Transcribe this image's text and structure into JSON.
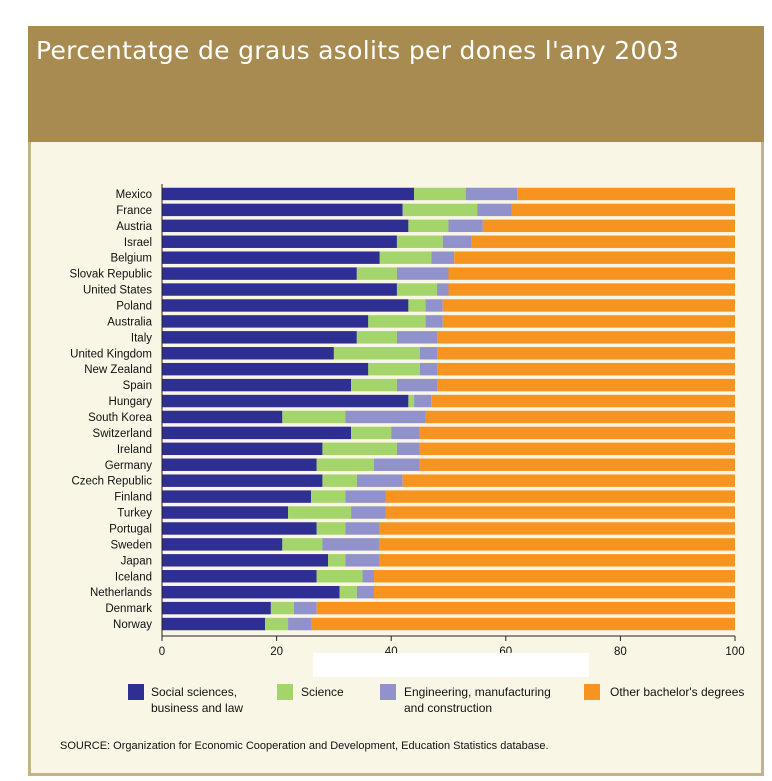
{
  "chart_data": {
    "type": "bar",
    "orientation": "horizontal",
    "stacked": true,
    "title": "Percentatge de graus asolits per dones l'any 2003",
    "xlim": [
      0,
      100
    ],
    "xticks": [
      0,
      20,
      40,
      60,
      80,
      100
    ],
    "categories": [
      "Mexico",
      "France",
      "Austria",
      "Israel",
      "Belgium",
      "Slovak Republic",
      "United States",
      "Poland",
      "Australia",
      "Italy",
      "United Kingdom",
      "New Zealand",
      "Spain",
      "Hungary",
      "South Korea",
      "Switzerland",
      "Ireland",
      "Germany",
      "Czech Republic",
      "Finland",
      "Turkey",
      "Portugal",
      "Sweden",
      "Japan",
      "Iceland",
      "Netherlands",
      "Denmark",
      "Norway"
    ],
    "series": [
      {
        "name": "Social sciences, business and law",
        "color": "#2e2e93",
        "values": [
          44,
          42,
          43,
          41,
          38,
          34,
          41,
          43,
          36,
          34,
          30,
          36,
          33,
          43,
          21,
          33,
          28,
          27,
          28,
          26,
          22,
          27,
          21,
          29,
          27,
          31,
          19,
          18
        ]
      },
      {
        "name": "Science",
        "color": "#a3d56a",
        "values": [
          9,
          13,
          7,
          8,
          9,
          7,
          7,
          3,
          10,
          7,
          15,
          9,
          8,
          1,
          11,
          7,
          13,
          10,
          6,
          6,
          11,
          5,
          7,
          3,
          8,
          3,
          4,
          4
        ]
      },
      {
        "name": "Engineering, manufacturing and construction",
        "color": "#9192cc",
        "values": [
          9,
          6,
          6,
          5,
          4,
          9,
          2,
          3,
          3,
          7,
          3,
          3,
          7,
          3,
          14,
          5,
          4,
          8,
          8,
          7,
          6,
          6,
          10,
          6,
          2,
          3,
          4,
          4
        ]
      },
      {
        "name": "Other bachelor's degrees",
        "color": "#f79420",
        "values": [
          38,
          39,
          44,
          46,
          49,
          50,
          50,
          51,
          51,
          52,
          52,
          52,
          52,
          53,
          54,
          55,
          55,
          55,
          58,
          61,
          61,
          62,
          62,
          62,
          63,
          63,
          73,
          74
        ]
      }
    ],
    "legend": {
      "position": "bottom",
      "labels": [
        {
          "line1": "Social sciences,",
          "line2": "business and law"
        },
        {
          "line1": "Science",
          "line2": ""
        },
        {
          "line1": "Engineering, manufacturing",
          "line2": "and construction"
        },
        {
          "line1": "Other bachelor's degrees",
          "line2": ""
        }
      ]
    },
    "source": "SOURCE: Organization for Economic Cooperation and Development, Education Statistics database."
  }
}
